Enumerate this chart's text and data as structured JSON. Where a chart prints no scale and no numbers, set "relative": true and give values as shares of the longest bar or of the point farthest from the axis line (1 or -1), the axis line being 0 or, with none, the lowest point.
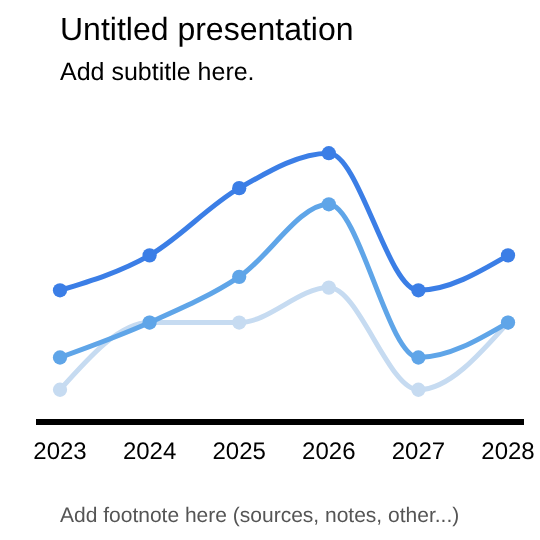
{
  "chart_data": {
    "type": "line",
    "title": "Untitled presentation",
    "subtitle": "Add subtitle here.",
    "annotations": [
      "Add footnote here (sources, notes, other...)"
    ],
    "categories": [
      "2023",
      "2024",
      "2025",
      "2026",
      "2027",
      "2028"
    ],
    "relative": true,
    "marker": "circle",
    "series": [
      {
        "color": "#3b7ee6",
        "values": [
          0.49,
          0.62,
          0.87,
          1,
          0.49,
          0.62
        ]
      },
      {
        "color": "#5fa5e8",
        "values": [
          0.24,
          0.37,
          0.54,
          0.81,
          0.24,
          0.37
        ]
      },
      {
        "color": "#c6dbf1",
        "values": [
          0.12,
          0.37,
          0.37,
          0.5,
          0.12,
          0.37
        ]
      }
    ]
  }
}
